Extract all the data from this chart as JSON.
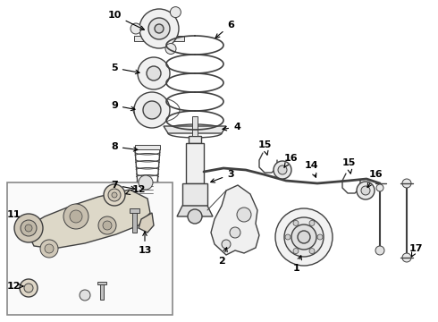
{
  "bg_color": "#ffffff",
  "lc": "#404040",
  "lc2": "#000000",
  "figsize": [
    4.9,
    3.6
  ],
  "dpi": 100,
  "xlim": [
    0,
    490
  ],
  "ylim": [
    0,
    360
  ]
}
